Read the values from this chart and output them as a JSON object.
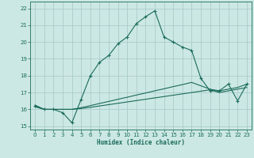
{
  "xlabel": "Humidex (Indice chaleur)",
  "ylabel": "",
  "bg_color": "#cce8e4",
  "grid_color": "#aacccc",
  "line_color": "#1a6b5a",
  "xlim": [
    -0.5,
    23.5
  ],
  "ylim": [
    14.8,
    22.4
  ],
  "xticks": [
    0,
    1,
    2,
    3,
    4,
    5,
    6,
    7,
    8,
    9,
    10,
    11,
    12,
    13,
    14,
    15,
    16,
    17,
    18,
    19,
    20,
    21,
    22,
    23
  ],
  "yticks": [
    15,
    16,
    17,
    18,
    19,
    20,
    21,
    22
  ],
  "line1_x": [
    0,
    1,
    2,
    3,
    4,
    5,
    6,
    7,
    8,
    9,
    10,
    11,
    12,
    13,
    14,
    15,
    16,
    17,
    18,
    19,
    20,
    21,
    22,
    23
  ],
  "line1_y": [
    16.2,
    16.0,
    16.0,
    15.8,
    15.2,
    16.6,
    18.0,
    18.8,
    19.2,
    19.9,
    20.3,
    21.1,
    21.5,
    21.85,
    20.3,
    20.0,
    19.7,
    19.5,
    17.85,
    17.1,
    17.1,
    17.5,
    16.5,
    17.5
  ],
  "line2_x": [
    0,
    1,
    2,
    3,
    4,
    5,
    6,
    7,
    8,
    9,
    10,
    11,
    12,
    13,
    14,
    15,
    16,
    17,
    18,
    19,
    20,
    21,
    22,
    23
  ],
  "line2_y": [
    16.15,
    16.0,
    16.0,
    16.0,
    16.0,
    16.05,
    16.12,
    16.2,
    16.28,
    16.36,
    16.44,
    16.52,
    16.6,
    16.68,
    16.76,
    16.84,
    16.92,
    17.0,
    17.08,
    17.16,
    17.0,
    17.1,
    17.2,
    17.3
  ],
  "line3_x": [
    0,
    1,
    2,
    3,
    4,
    5,
    6,
    7,
    8,
    9,
    10,
    11,
    12,
    13,
    14,
    15,
    16,
    17,
    18,
    19,
    20,
    21,
    22,
    23
  ],
  "line3_y": [
    16.25,
    16.0,
    16.0,
    16.0,
    16.0,
    16.1,
    16.22,
    16.35,
    16.47,
    16.6,
    16.72,
    16.85,
    16.97,
    17.1,
    17.22,
    17.35,
    17.47,
    17.6,
    17.4,
    17.2,
    17.1,
    17.2,
    17.3,
    17.5
  ]
}
